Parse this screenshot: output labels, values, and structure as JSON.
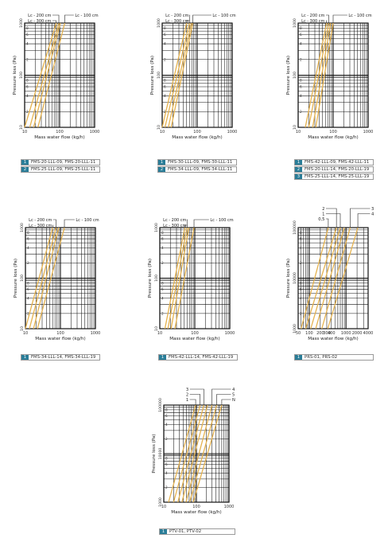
{
  "colors": {
    "curve": "#e5b24f",
    "legend_badge": "#2a7d98",
    "grid": "#111111"
  },
  "chart_data": [
    {
      "type": "line",
      "xscale": "log",
      "yscale": "log",
      "xlim": [
        10,
        1000
      ],
      "ylim": [
        10,
        1000
      ],
      "xlabel": "Mass water flow (kg/h)",
      "ylabel": "Pressure loss (Pa)",
      "xticks": [
        "10",
        "100",
        "1000"
      ],
      "yticks": [
        "10",
        "100",
        "1000"
      ],
      "annotations": [
        {
          "text": "Lc - 200 cm",
          "curve": 1
        },
        {
          "text": "Lc - 300 cm",
          "curve": 0
        },
        {
          "text": "Lc - 100 cm",
          "curve": 3
        }
      ],
      "series": [
        {
          "values": [
            [
              10,
              10
            ],
            [
              80,
              1000
            ]
          ]
        },
        {
          "values": [
            [
              14,
              10
            ],
            [
              95,
              1000
            ]
          ]
        },
        {
          "values": [
            [
              18,
              10
            ],
            [
              105,
              1000
            ]
          ]
        },
        {
          "values": [
            [
              24,
              10
            ],
            [
              140,
              1000
            ]
          ]
        }
      ],
      "legend": [
        {
          "num": "1",
          "text": "FMS-20-LLL-09, FMS-20-LLL-11"
        },
        {
          "num": "2",
          "text": "FMS-25-LLL-09, FMS-25-LLL-11"
        }
      ]
    },
    {
      "type": "line",
      "xscale": "log",
      "yscale": "log",
      "xlim": [
        10,
        1000
      ],
      "ylim": [
        10,
        1000
      ],
      "xlabel": "Mass water flow (kg/h)",
      "ylabel": "Pressure loss (Pa)",
      "xticks": [
        "10",
        "100",
        "1000"
      ],
      "yticks": [
        "10",
        "100",
        "1000"
      ],
      "annotations": [
        {
          "text": "Lc - 200 cm",
          "curve": 1
        },
        {
          "text": "Lc - 300 cm",
          "curve": 0
        },
        {
          "text": "Lc - 100 cm",
          "curve": 3
        }
      ],
      "series": [
        {
          "values": [
            [
              10,
              10
            ],
            [
              50,
              1000
            ]
          ]
        },
        {
          "values": [
            [
              12,
              10
            ],
            [
              60,
              1000
            ]
          ]
        },
        {
          "values": [
            [
              15,
              10
            ],
            [
              68,
              1000
            ]
          ]
        },
        {
          "values": [
            [
              18,
              10
            ],
            [
              75,
              1000
            ]
          ]
        }
      ],
      "legend": [
        {
          "num": "1",
          "text": "FMS-30-LLL-09, FMS-30-LLL-11"
        },
        {
          "num": "2",
          "text": "FMS-34-LLL-09, FMS-34-LLL-11"
        }
      ]
    },
    {
      "type": "line",
      "xscale": "log",
      "yscale": "log",
      "xlim": [
        10,
        1000
      ],
      "ylim": [
        10,
        1000
      ],
      "xlabel": "Mass water flow (kg/h)",
      "ylabel": "Pressure loss (Pa)",
      "xticks": [
        "10",
        "100",
        "1000"
      ],
      "yticks": [
        "10",
        "100",
        "1000"
      ],
      "annotations": [
        {
          "text": "Lc - 200 cm",
          "curve": 1
        },
        {
          "text": "Lc - 300 cm",
          "curve": 0
        },
        {
          "text": "Lc - 100 cm",
          "curve": 3
        }
      ],
      "series": [
        {
          "values": [
            [
              16,
              10
            ],
            [
              65,
              1000
            ]
          ]
        },
        {
          "values": [
            [
              20,
              10
            ],
            [
              75,
              1000
            ]
          ]
        },
        {
          "values": [
            [
              26,
              10
            ],
            [
              85,
              1000
            ]
          ]
        },
        {
          "values": [
            [
              32,
              10
            ],
            [
              100,
              1000
            ]
          ]
        }
      ],
      "legend": [
        {
          "num": "1",
          "text": "FMS-42-LLL-09, FMS-42-LLL-11"
        },
        {
          "num": "2",
          "text": "FMS-20-LLL-14, FMS-20-LLL-19"
        },
        {
          "num": "3",
          "text": "FMS-25-LLL-14, FMS-25-LLL-19"
        }
      ]
    },
    {
      "type": "line",
      "xscale": "log",
      "yscale": "log",
      "xlim": [
        10,
        1000
      ],
      "ylim": [
        10,
        1000
      ],
      "xlabel": "Mass water flow (kg/h)",
      "ylabel": "Pressure loss (Pa)",
      "xticks": [
        "10",
        "100",
        "1000"
      ],
      "yticks": [
        "10",
        "100",
        "1000"
      ],
      "annotations": [
        {
          "text": "Lc - 200 cm",
          "curve": 1
        },
        {
          "text": "Lc - 300 cm",
          "curve": 0
        },
        {
          "text": "Lc - 100 cm",
          "curve": 3
        }
      ],
      "series": [
        {
          "values": [
            [
              10,
              10
            ],
            [
              60,
              1000
            ]
          ]
        },
        {
          "values": [
            [
              13,
              10
            ],
            [
              75,
              1000
            ]
          ]
        },
        {
          "values": [
            [
              17,
              10
            ],
            [
              90,
              1000
            ]
          ]
        },
        {
          "values": [
            [
              22,
              10
            ],
            [
              130,
              1000
            ]
          ]
        }
      ],
      "legend": [
        {
          "num": "1",
          "text": "FMS-34-LLL-14, FMS-34-LLL-19"
        }
      ]
    },
    {
      "type": "line",
      "xscale": "log",
      "yscale": "log",
      "xlim": [
        10,
        1000
      ],
      "ylim": [
        10,
        1000
      ],
      "xlabel": "Mass water flow (kg/h)",
      "ylabel": "Pressure loss (Pa)",
      "xticks": [
        "10",
        "100",
        "1000"
      ],
      "yticks": [
        "10",
        "100",
        "1000"
      ],
      "annotations": [
        {
          "text": "Lc - 200 cm",
          "curve": 1
        },
        {
          "text": "Lc - 300 cm",
          "curve": 0
        },
        {
          "text": "Lc - 100 cm",
          "curve": 3
        }
      ],
      "series": [
        {
          "values": [
            [
              14,
              10
            ],
            [
              52,
              1000
            ]
          ]
        },
        {
          "values": [
            [
              17,
              10
            ],
            [
              60,
              1000
            ]
          ]
        },
        {
          "values": [
            [
              21,
              10
            ],
            [
              68,
              1000
            ]
          ]
        },
        {
          "values": [
            [
              27,
              10
            ],
            [
              95,
              1000
            ]
          ]
        }
      ],
      "legend": [
        {
          "num": "1",
          "text": "FMS-42-LLL-14, FMS-42-LLL-19"
        }
      ]
    },
    {
      "type": "line",
      "xscale": "log",
      "yscale": "log",
      "xlim": [
        50,
        4000
      ],
      "ylim": [
        1000,
        100000
      ],
      "xlabel": "Mass water flow (kg/h)",
      "ylabel": "Pressure loss (Pa)",
      "xticks": [
        "50",
        "100",
        "200",
        "300",
        "400",
        "1000",
        "2000",
        "4000"
      ],
      "yticks": [
        "1000",
        "10000",
        "100000"
      ],
      "annotations": [
        {
          "text": "2",
          "curve": 1
        },
        {
          "text": "1",
          "curve": 2
        },
        {
          "text": "0,5",
          "curve": 0
        },
        {
          "text": "3",
          "curve": 4
        },
        {
          "text": "4",
          "curve": 5
        }
      ],
      "series": [
        {
          "values": [
            [
              60,
              1000
            ],
            [
              330,
              100000
            ]
          ]
        },
        {
          "values": [
            [
              80,
              1000
            ],
            [
              550,
              100000
            ]
          ]
        },
        {
          "values": [
            [
              110,
              1000
            ],
            [
              700,
              100000
            ]
          ]
        },
        {
          "values": [
            [
              150,
              1000
            ],
            [
              900,
              100000
            ]
          ]
        },
        {
          "values": [
            [
              220,
              1000
            ],
            [
              1300,
              100000
            ]
          ]
        },
        {
          "values": [
            [
              320,
              1000
            ],
            [
              2100,
              100000
            ]
          ]
        }
      ],
      "legend": [
        {
          "num": "1",
          "text": "PRS-01, PRS-02"
        }
      ]
    },
    {
      "type": "line",
      "xscale": "log",
      "yscale": "log",
      "xlim": [
        10,
        1000
      ],
      "ylim": [
        1000,
        100000
      ],
      "xlabel": "Mass water flow (kg/h)",
      "ylabel": "Pressure loss (Pa)",
      "xticks": [
        "10",
        "100",
        "1000"
      ],
      "yticks": [
        "1000",
        "10000",
        "100000"
      ],
      "annotations": [
        {
          "text": "3",
          "curve": 2
        },
        {
          "text": "2",
          "curve": 1
        },
        {
          "text": "1",
          "curve": 0
        },
        {
          "text": "4",
          "curve": 4
        },
        {
          "text": "5",
          "curve": 5
        },
        {
          "text": "N",
          "curve": 6
        }
      ],
      "series": [
        {
          "values": [
            [
              14,
              1000
            ],
            [
              95,
              100000
            ]
          ]
        },
        {
          "values": [
            [
              20,
              1000
            ],
            [
              130,
              100000
            ]
          ]
        },
        {
          "values": [
            [
              27,
              1000
            ],
            [
              170,
              100000
            ]
          ]
        },
        {
          "values": [
            [
              36,
              1000
            ],
            [
              220,
              100000
            ]
          ]
        },
        {
          "values": [
            [
              48,
              1000
            ],
            [
              300,
              100000
            ]
          ]
        },
        {
          "values": [
            [
              62,
              1000
            ],
            [
              420,
              100000
            ]
          ]
        },
        {
          "values": [
            [
              80,
              1000
            ],
            [
              600,
              100000
            ]
          ]
        }
      ],
      "legend": [
        {
          "num": "1",
          "text": "PTV-01, PTV-02"
        }
      ]
    }
  ]
}
